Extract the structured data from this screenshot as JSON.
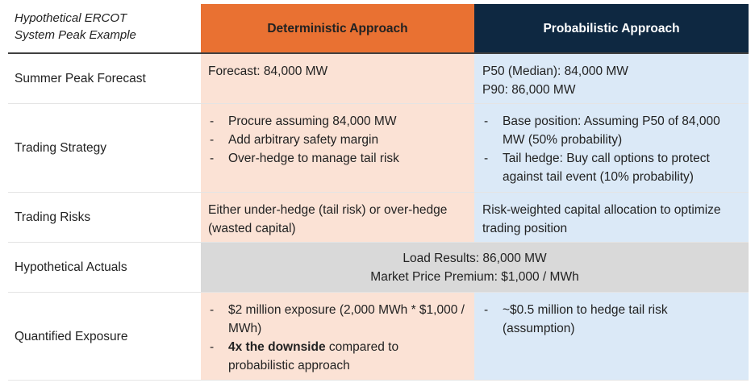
{
  "header": {
    "corner_line1": "Hypothetical ERCOT",
    "corner_line2": "System Peak Example",
    "deterministic": "Deterministic Approach",
    "probabilistic": "Probabilistic Approach"
  },
  "rows": {
    "forecast": {
      "label": "Summer Peak Forecast",
      "det": "Forecast: 84,000 MW",
      "prob_line1": "P50 (Median): 84,000 MW",
      "prob_line2": "P90: 86,000 MW"
    },
    "strategy": {
      "label": "Trading Strategy",
      "det": [
        "Procure assuming 84,000 MW",
        "Add arbitrary safety margin",
        "Over-hedge to manage tail risk"
      ],
      "prob": [
        "Base position: Assuming P50 of 84,000 MW (50% probability)",
        "Tail hedge: Buy call options to protect against tail event (10% probability)"
      ]
    },
    "risks": {
      "label": "Trading Risks",
      "det": "Either under-hedge (tail risk) or over-hedge (wasted capital)",
      "prob": "Risk-weighted capital allocation to optimize trading position"
    },
    "actuals": {
      "label": "Hypothetical Actuals",
      "line1": "Load Results: 86,000 MW",
      "line2": "Market Price Premium: $1,000 / MWh"
    },
    "exposure": {
      "label": "Quantified Exposure",
      "det_1": "$2 million exposure (2,000 MWh * $1,000 / MWh)",
      "det_2_bold": "4x the downside",
      "det_2_rest": " compared to probabilistic approach",
      "prob_1": "~$0.5 million to hedge tail risk (assumption)"
    }
  },
  "colors": {
    "deterministic_header": "#e97132",
    "probabilistic_header": "#0e2841",
    "deterministic_cell": "#fbe2d5",
    "probabilistic_cell": "#dbe9f7",
    "shared_cell": "#d9d9d9"
  }
}
